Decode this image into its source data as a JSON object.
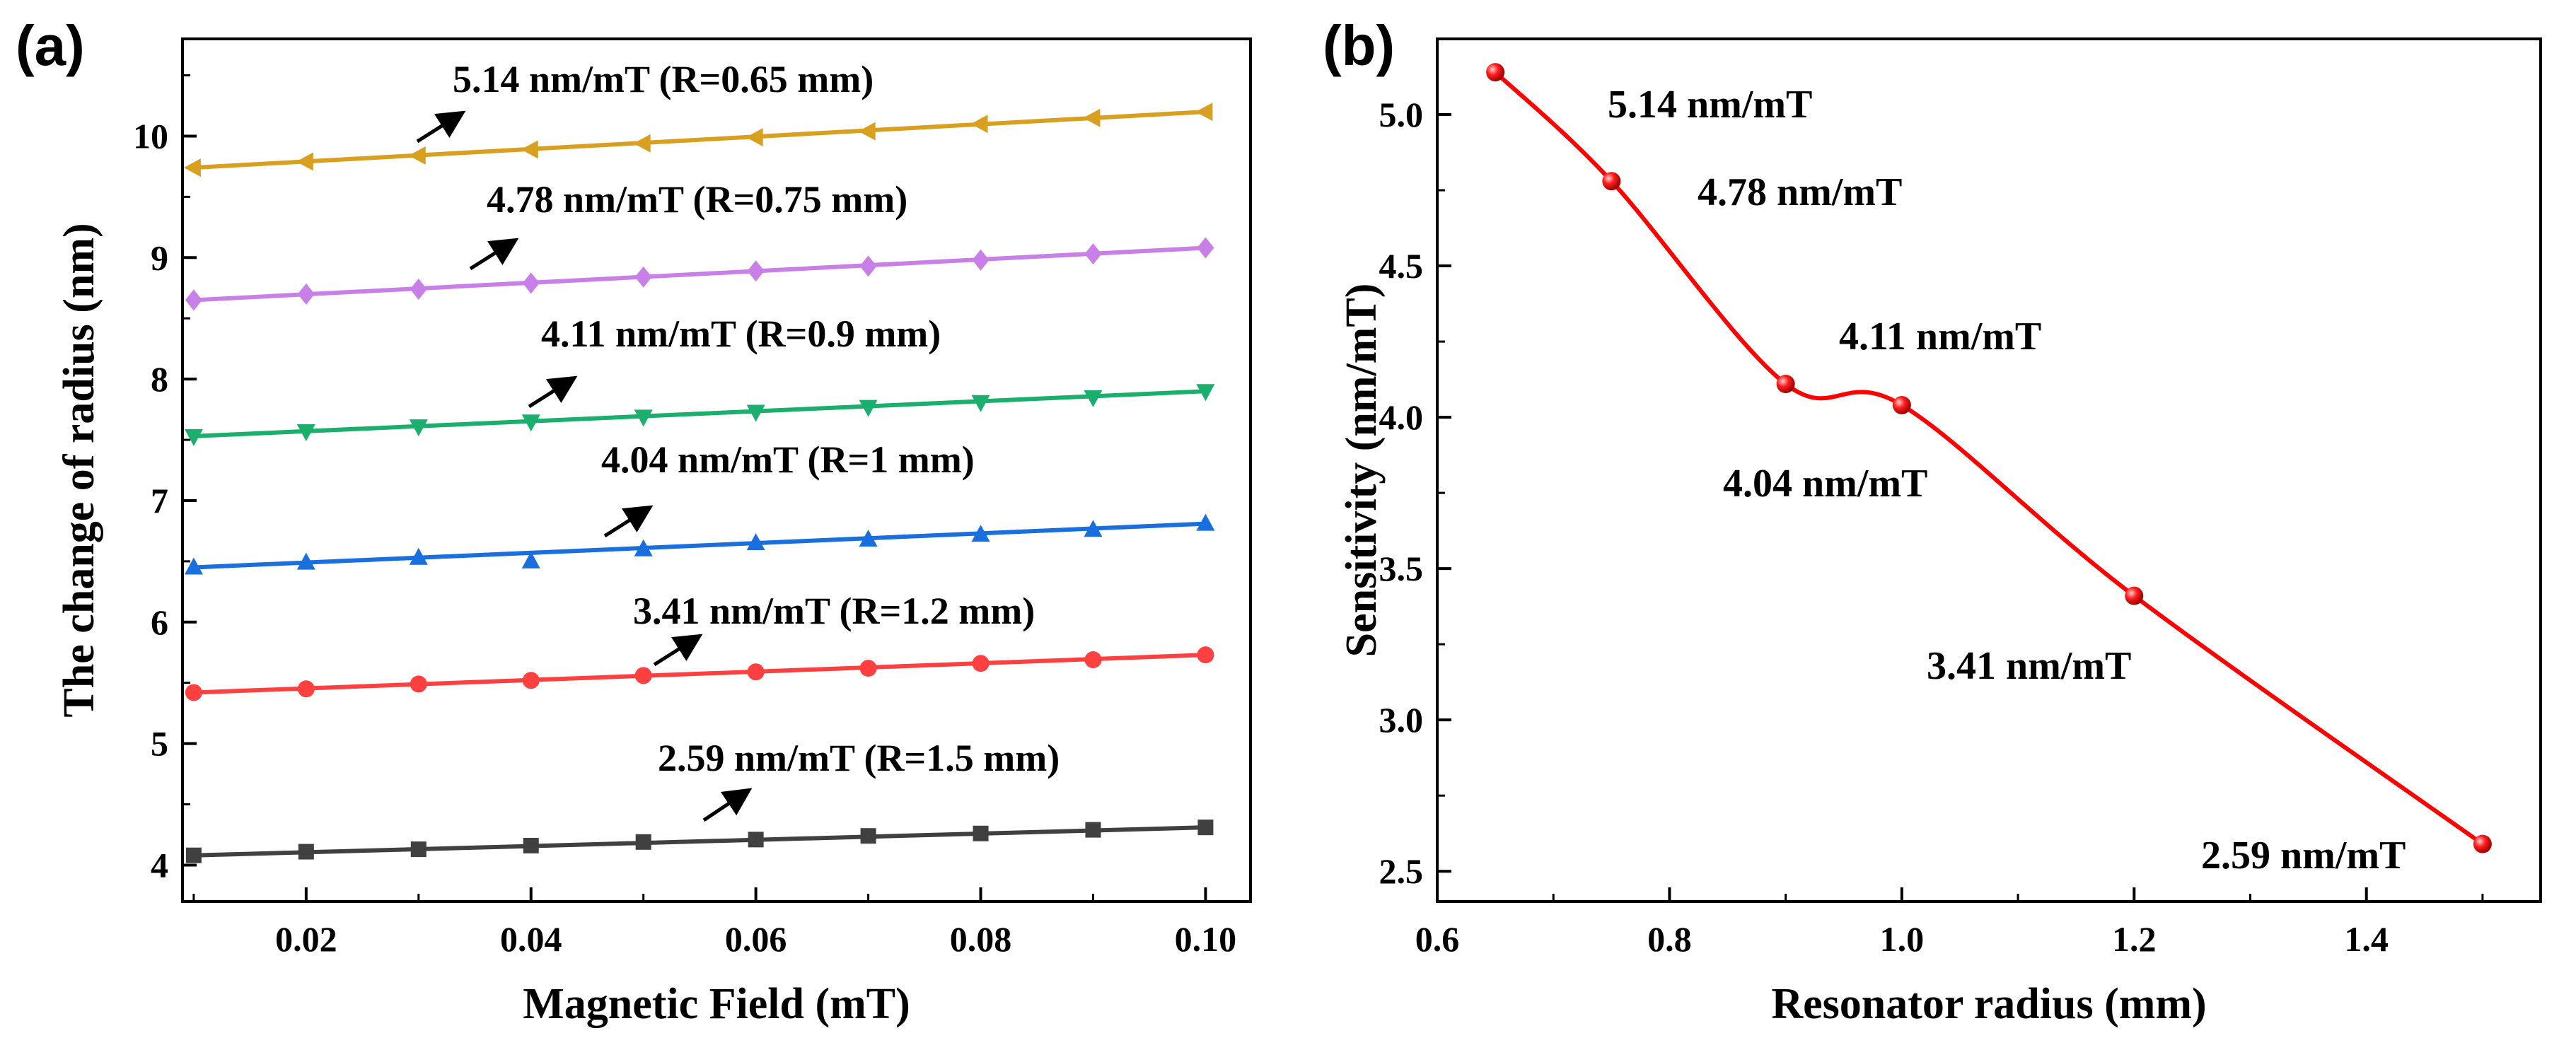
{
  "chart_data": [
    {
      "panel": "(a)",
      "type": "line",
      "title": "",
      "xlabel": "Magnetic Field (mT)",
      "ylabel": "The change of radius (nm)",
      "xlim": [
        0.009,
        0.104
      ],
      "ylim": [
        3.7,
        10.8
      ],
      "xticks": [
        0.02,
        0.04,
        0.06,
        0.08,
        0.1
      ],
      "xtick_labels": [
        "0.02",
        "0.04",
        "0.06",
        "0.08",
        "0.10"
      ],
      "yticks": [
        4,
        5,
        6,
        7,
        8,
        9,
        10
      ],
      "ytick_labels": [
        "4",
        "5",
        "6",
        "7",
        "8",
        "9",
        "10"
      ],
      "grid": false,
      "x": [
        0.01,
        0.02,
        0.03,
        0.04,
        0.05,
        0.06,
        0.07,
        0.08,
        0.09,
        0.1
      ],
      "series": [
        {
          "color": "#404040",
          "marker": "square",
          "label": "2.59 nm/mT (R=1.5 mm)",
          "values": [
            4.08,
            4.11,
            4.13,
            4.16,
            4.19,
            4.21,
            4.24,
            4.26,
            4.29,
            4.31
          ]
        },
        {
          "color": "#ff4040",
          "marker": "circle",
          "label": "3.41 nm/mT (R=1.2 mm)",
          "values": [
            5.42,
            5.45,
            5.49,
            5.52,
            5.56,
            5.59,
            5.62,
            5.66,
            5.69,
            5.73
          ]
        },
        {
          "color": "#1a6fdf",
          "marker": "triangle-up",
          "label": "4.04 nm/mT (R=1 mm)",
          "values": [
            6.45,
            6.49,
            6.53,
            6.5,
            6.6,
            6.65,
            6.68,
            6.72,
            6.76,
            6.81
          ]
        },
        {
          "color": "#1aaf6c",
          "marker": "triangle-down",
          "label": "4.11 nm/mT (R=0.9 mm)",
          "values": [
            7.53,
            7.57,
            7.61,
            7.65,
            7.69,
            7.73,
            7.77,
            7.81,
            7.85,
            7.9
          ]
        },
        {
          "color": "#c97fe8",
          "marker": "diamond",
          "label": "4.78 nm/mT (R=0.75 mm)",
          "values": [
            8.65,
            8.7,
            8.74,
            8.79,
            8.84,
            8.89,
            8.93,
            8.98,
            9.03,
            9.08
          ]
        },
        {
          "color": "#d9a020",
          "marker": "triangle-left",
          "label": "5.14 nm/mT (R=0.65 mm)",
          "values": [
            9.74,
            9.79,
            9.84,
            9.89,
            9.94,
            9.99,
            10.04,
            10.1,
            10.15,
            10.2
          ]
        }
      ]
    },
    {
      "panel": "(b)",
      "type": "line",
      "title": "",
      "xlabel": "Resonator radius (mm)",
      "ylabel": "Sensitivity (nm/mT)",
      "xlim": [
        0.6,
        1.55
      ],
      "ylim": [
        2.4,
        5.25
      ],
      "xticks": [
        0.6,
        0.8,
        1.0,
        1.2,
        1.4
      ],
      "xtick_labels": [
        "0.6",
        "0.8",
        "1.0",
        "1.2",
        "1.4"
      ],
      "yticks": [
        2.5,
        3.0,
        3.5,
        4.0,
        4.5,
        5.0
      ],
      "ytick_labels": [
        "2.5",
        "3.0",
        "3.5",
        "4.0",
        "4.5",
        "5.0"
      ],
      "grid": false,
      "x": [
        0.65,
        0.75,
        0.9,
        1.0,
        1.2,
        1.5
      ],
      "series": [
        {
          "color": "#ff0000",
          "marker": "circle",
          "values": [
            5.14,
            4.78,
            4.11,
            4.04,
            3.41,
            2.59
          ]
        }
      ],
      "point_labels": [
        "5.14 nm/mT",
        "4.78 nm/mT",
        "4.11 nm/mT",
        "4.04 nm/mT",
        "3.41 nm/mT",
        "2.59 nm/mT"
      ]
    }
  ]
}
